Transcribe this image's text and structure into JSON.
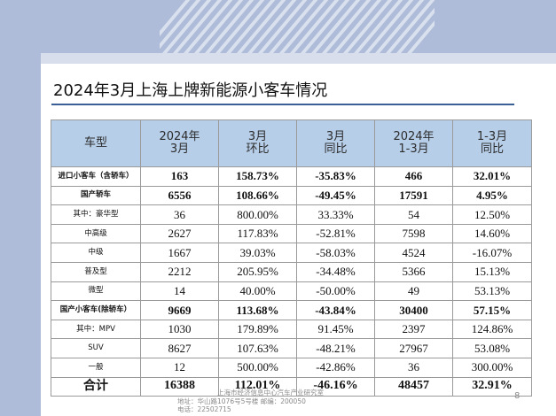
{
  "title": "2024年3月上海上牌新能源小客车情况",
  "table": {
    "headers": [
      [
        "车型"
      ],
      [
        "2024年",
        "3月"
      ],
      [
        "3月",
        "环比"
      ],
      [
        "3月",
        "同比"
      ],
      [
        "2024年",
        "1-3月"
      ],
      [
        "1-3月",
        "同比"
      ]
    ],
    "rows": [
      {
        "name": "进口小客车（含轿车）",
        "bold": true,
        "total": false,
        "cells": [
          "163",
          "158.73%",
          "-35.83%",
          "466",
          "32.01%"
        ]
      },
      {
        "name": "国产轿车",
        "bold": true,
        "total": false,
        "cells": [
          "6556",
          "108.66%",
          "-49.45%",
          "17591",
          "4.95%"
        ]
      },
      {
        "name": "其中：豪华型",
        "bold": false,
        "total": false,
        "cells": [
          "36",
          "800.00%",
          "33.33%",
          "54",
          "12.50%"
        ]
      },
      {
        "name": "中高级",
        "bold": false,
        "total": false,
        "cells": [
          "2627",
          "117.83%",
          "-52.81%",
          "7598",
          "14.60%"
        ]
      },
      {
        "name": "中级",
        "bold": false,
        "total": false,
        "cells": [
          "1667",
          "39.03%",
          "-58.03%",
          "4524",
          "-16.07%"
        ]
      },
      {
        "name": "普及型",
        "bold": false,
        "total": false,
        "cells": [
          "2212",
          "205.95%",
          "-34.48%",
          "5366",
          "15.13%"
        ]
      },
      {
        "name": "微型",
        "bold": false,
        "total": false,
        "cells": [
          "14",
          "40.00%",
          "-50.00%",
          "49",
          "53.13%"
        ]
      },
      {
        "name": "国产小客车(除轿车）",
        "bold": true,
        "total": false,
        "cells": [
          "9669",
          "113.68%",
          "-43.84%",
          "30400",
          "57.15%"
        ]
      },
      {
        "name": "其中：MPV",
        "bold": false,
        "total": false,
        "cells": [
          "1030",
          "179.89%",
          "91.45%",
          "2397",
          "124.86%"
        ]
      },
      {
        "name": "SUV",
        "bold": false,
        "total": false,
        "cells": [
          "8627",
          "107.63%",
          "-48.21%",
          "27967",
          "53.08%"
        ]
      },
      {
        "name": "一般",
        "bold": false,
        "total": false,
        "cells": [
          "12",
          "500.00%",
          "-42.86%",
          "36",
          "300.00%"
        ]
      },
      {
        "name": "合计",
        "bold": true,
        "total": true,
        "cells": [
          "16388",
          "112.01%",
          "-46.16%",
          "48457",
          "32.91%"
        ]
      }
    ]
  },
  "footer": {
    "line1": "上海市经济信息中心汽车产业研究室",
    "line2": "地址：华山路1076号5号楼   邮编：200050",
    "line3": "电话：22502715"
  },
  "page_number": "8",
  "colors": {
    "band": "#aebcd9",
    "header_fill": "#b7cee9",
    "title_rule": "#3a5f95"
  }
}
